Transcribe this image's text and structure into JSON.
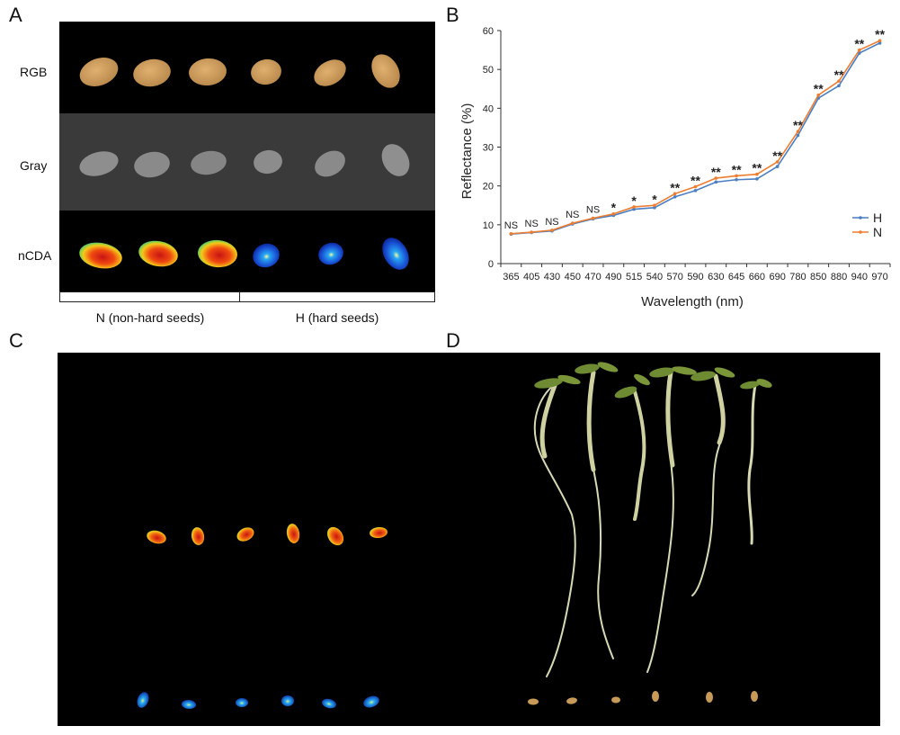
{
  "panel_letters": {
    "a": "A",
    "b": "B",
    "c": "C",
    "d": "D"
  },
  "panel_a": {
    "row_labels": [
      "RGB",
      "Gray",
      "nCDA"
    ],
    "group_labels": [
      "N (non-hard seeds)",
      "H (hard seeds)"
    ]
  },
  "chart_data": {
    "type": "line",
    "xlabel": "Wavelength (nm)",
    "ylabel": "Reflectance (%)",
    "ylim": [
      0,
      60
    ],
    "yticks": [
      0,
      10,
      20,
      30,
      40,
      50,
      60
    ],
    "grid": false,
    "legend_position": "right",
    "categories": [
      "365",
      "405",
      "430",
      "450",
      "470",
      "490",
      "515",
      "540",
      "570",
      "590",
      "630",
      "645",
      "660",
      "690",
      "780",
      "850",
      "880",
      "940",
      "970"
    ],
    "series": [
      {
        "name": "H",
        "color": "#4a7fc1",
        "values": [
          7.6,
          8.0,
          8.4,
          10.2,
          11.5,
          12.4,
          14.0,
          14.4,
          17.2,
          18.8,
          21.0,
          21.6,
          21.8,
          25.0,
          33.0,
          42.6,
          45.8,
          54.2,
          56.8
        ]
      },
      {
        "name": "N",
        "color": "#ed7d31",
        "values": [
          7.7,
          8.1,
          8.6,
          10.4,
          11.7,
          12.8,
          14.6,
          15.0,
          18.0,
          19.8,
          22.0,
          22.6,
          23.0,
          26.2,
          34.0,
          43.4,
          47.0,
          55.0,
          57.4
        ]
      }
    ],
    "significance": [
      "NS",
      "NS",
      "NS",
      "NS",
      "NS",
      "*",
      "*",
      "*",
      "**",
      "**",
      "**",
      "**",
      "**",
      "**",
      "**",
      "**",
      "**",
      "**",
      "**"
    ]
  },
  "colors": {
    "h_series": "#4a7fc1",
    "n_series": "#ed7d31",
    "photo_bg": "#000000",
    "gray_bg": "#3a3a3a"
  }
}
